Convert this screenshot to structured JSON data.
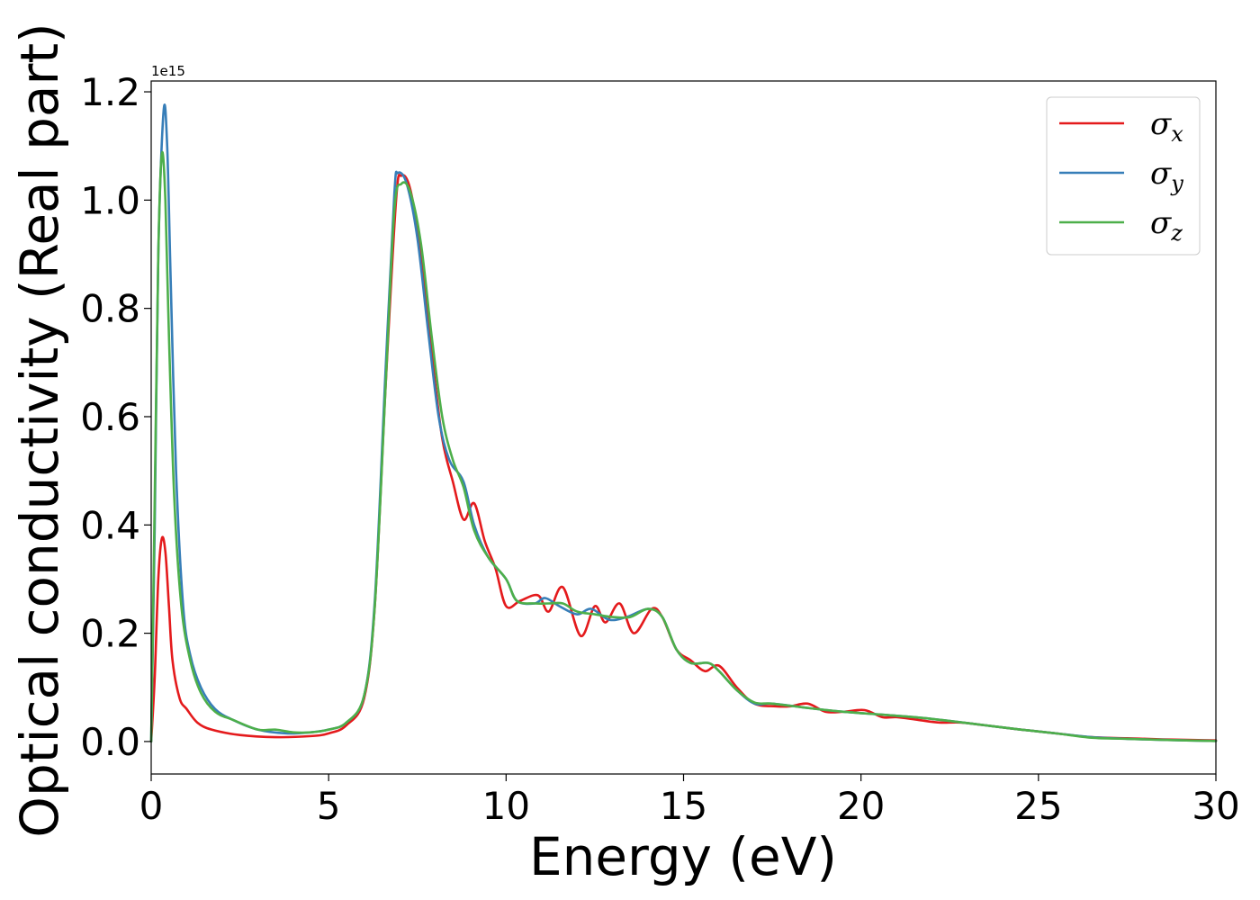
{
  "chart_data": {
    "type": "line",
    "title": "",
    "xlabel": "Energy (eV)",
    "ylabel": "Optical conductivity (Real part)",
    "y_offset_text": "1e15",
    "y_scale_factor": 1000000000000000.0,
    "xlim": [
      0,
      30
    ],
    "ylim": [
      -0.06,
      1.22
    ],
    "x_ticks": [
      0,
      5,
      10,
      15,
      20,
      25,
      30
    ],
    "x_tick_labels": [
      "0",
      "5",
      "10",
      "15",
      "20",
      "25",
      "30"
    ],
    "y_ticks": [
      0.0,
      0.2,
      0.4,
      0.6,
      0.8,
      1.0,
      1.2
    ],
    "y_tick_labels": [
      "0.0",
      "0.2",
      "0.4",
      "0.6",
      "0.8",
      "1.0",
      "1.2"
    ],
    "grid": false,
    "legend_position": "upper-right",
    "series": [
      {
        "name": "σx",
        "symbol": "σ",
        "subscript": "x",
        "color": "#e41a1c",
        "points": [
          [
            0,
            0
          ],
          [
            0.1,
            0.12
          ],
          [
            0.2,
            0.3
          ],
          [
            0.3,
            0.375
          ],
          [
            0.4,
            0.35
          ],
          [
            0.5,
            0.25
          ],
          [
            0.6,
            0.15
          ],
          [
            0.8,
            0.08
          ],
          [
            1.0,
            0.06
          ],
          [
            1.3,
            0.035
          ],
          [
            1.7,
            0.022
          ],
          [
            2.5,
            0.012
          ],
          [
            3.5,
            0.008
          ],
          [
            4.5,
            0.01
          ],
          [
            5.0,
            0.015
          ],
          [
            5.5,
            0.03
          ],
          [
            6.0,
            0.08
          ],
          [
            6.3,
            0.25
          ],
          [
            6.6,
            0.65
          ],
          [
            6.9,
            1.0
          ],
          [
            7.05,
            1.045
          ],
          [
            7.3,
            1.02
          ],
          [
            7.6,
            0.9
          ],
          [
            7.9,
            0.72
          ],
          [
            8.2,
            0.56
          ],
          [
            8.5,
            0.48
          ],
          [
            8.8,
            0.41
          ],
          [
            9.1,
            0.44
          ],
          [
            9.4,
            0.37
          ],
          [
            9.7,
            0.32
          ],
          [
            10.0,
            0.25
          ],
          [
            10.4,
            0.26
          ],
          [
            10.9,
            0.27
          ],
          [
            11.2,
            0.24
          ],
          [
            11.6,
            0.285
          ],
          [
            12.1,
            0.195
          ],
          [
            12.5,
            0.25
          ],
          [
            12.8,
            0.22
          ],
          [
            13.2,
            0.255
          ],
          [
            13.6,
            0.2
          ],
          [
            14.1,
            0.245
          ],
          [
            14.4,
            0.23
          ],
          [
            14.8,
            0.17
          ],
          [
            15.2,
            0.15
          ],
          [
            15.6,
            0.13
          ],
          [
            16.0,
            0.14
          ],
          [
            16.5,
            0.1
          ],
          [
            17.0,
            0.07
          ],
          [
            17.6,
            0.065
          ],
          [
            18.0,
            0.065
          ],
          [
            18.5,
            0.07
          ],
          [
            19.0,
            0.055
          ],
          [
            19.5,
            0.055
          ],
          [
            20.1,
            0.058
          ],
          [
            20.6,
            0.045
          ],
          [
            21.0,
            0.045
          ],
          [
            21.6,
            0.04
          ],
          [
            22.2,
            0.035
          ],
          [
            22.8,
            0.035
          ],
          [
            23.5,
            0.03
          ],
          [
            24.5,
            0.022
          ],
          [
            25.5,
            0.015
          ],
          [
            26.5,
            0.008
          ],
          [
            27.5,
            0.006
          ],
          [
            28.5,
            0.004
          ],
          [
            30,
            0.002
          ]
        ]
      },
      {
        "name": "σy",
        "symbol": "σ",
        "subscript": "y",
        "color": "#377eb8",
        "points": [
          [
            0,
            0
          ],
          [
            0.1,
            0.4
          ],
          [
            0.2,
            0.9
          ],
          [
            0.35,
            1.165
          ],
          [
            0.45,
            1.1
          ],
          [
            0.55,
            0.85
          ],
          [
            0.7,
            0.5
          ],
          [
            0.9,
            0.25
          ],
          [
            1.1,
            0.16
          ],
          [
            1.4,
            0.1
          ],
          [
            1.8,
            0.06
          ],
          [
            2.3,
            0.04
          ],
          [
            3.0,
            0.022
          ],
          [
            3.8,
            0.015
          ],
          [
            4.5,
            0.017
          ],
          [
            5.0,
            0.022
          ],
          [
            5.5,
            0.035
          ],
          [
            6.0,
            0.085
          ],
          [
            6.3,
            0.26
          ],
          [
            6.6,
            0.68
          ],
          [
            6.85,
            1.01
          ],
          [
            6.95,
            1.05
          ],
          [
            7.2,
            1.03
          ],
          [
            7.5,
            0.93
          ],
          [
            7.8,
            0.76
          ],
          [
            8.1,
            0.6
          ],
          [
            8.4,
            0.52
          ],
          [
            8.8,
            0.48
          ],
          [
            9.1,
            0.4
          ],
          [
            9.5,
            0.34
          ],
          [
            10.0,
            0.3
          ],
          [
            10.3,
            0.26
          ],
          [
            10.8,
            0.255
          ],
          [
            11.1,
            0.265
          ],
          [
            11.5,
            0.25
          ],
          [
            12.0,
            0.235
          ],
          [
            12.4,
            0.245
          ],
          [
            12.9,
            0.225
          ],
          [
            13.4,
            0.23
          ],
          [
            14.0,
            0.245
          ],
          [
            14.4,
            0.23
          ],
          [
            14.8,
            0.17
          ],
          [
            15.2,
            0.145
          ],
          [
            15.7,
            0.145
          ],
          [
            16.0,
            0.13
          ],
          [
            16.5,
            0.095
          ],
          [
            17.0,
            0.07
          ],
          [
            17.5,
            0.07
          ],
          [
            18.5,
            0.062
          ],
          [
            19.5,
            0.055
          ],
          [
            20.5,
            0.05
          ],
          [
            21.5,
            0.045
          ],
          [
            22.5,
            0.038
          ],
          [
            23.5,
            0.03
          ],
          [
            24.5,
            0.022
          ],
          [
            25.5,
            0.015
          ],
          [
            26.5,
            0.008
          ],
          [
            27.5,
            0.005
          ],
          [
            28.5,
            0.003
          ],
          [
            30,
            0.001
          ]
        ]
      },
      {
        "name": "σz",
        "symbol": "σ",
        "subscript": "z",
        "color": "#4daf4a",
        "points": [
          [
            0,
            0
          ],
          [
            0.1,
            0.45
          ],
          [
            0.2,
            0.9
          ],
          [
            0.3,
            1.085
          ],
          [
            0.4,
            1.0
          ],
          [
            0.5,
            0.75
          ],
          [
            0.65,
            0.45
          ],
          [
            0.85,
            0.25
          ],
          [
            1.1,
            0.15
          ],
          [
            1.4,
            0.09
          ],
          [
            1.8,
            0.055
          ],
          [
            2.3,
            0.04
          ],
          [
            3.0,
            0.022
          ],
          [
            3.5,
            0.022
          ],
          [
            4.0,
            0.017
          ],
          [
            4.5,
            0.017
          ],
          [
            5.0,
            0.022
          ],
          [
            5.5,
            0.035
          ],
          [
            6.0,
            0.085
          ],
          [
            6.3,
            0.25
          ],
          [
            6.6,
            0.65
          ],
          [
            6.85,
            0.98
          ],
          [
            7.05,
            1.03
          ],
          [
            7.3,
            1.015
          ],
          [
            7.6,
            0.92
          ],
          [
            7.9,
            0.75
          ],
          [
            8.2,
            0.6
          ],
          [
            8.5,
            0.52
          ],
          [
            8.8,
            0.47
          ],
          [
            9.1,
            0.39
          ],
          [
            9.5,
            0.34
          ],
          [
            10.0,
            0.3
          ],
          [
            10.3,
            0.26
          ],
          [
            10.8,
            0.255
          ],
          [
            11.2,
            0.255
          ],
          [
            11.6,
            0.255
          ],
          [
            12.0,
            0.24
          ],
          [
            12.5,
            0.235
          ],
          [
            13.0,
            0.23
          ],
          [
            13.5,
            0.23
          ],
          [
            14.0,
            0.245
          ],
          [
            14.4,
            0.23
          ],
          [
            14.8,
            0.17
          ],
          [
            15.2,
            0.145
          ],
          [
            15.7,
            0.145
          ],
          [
            16.0,
            0.13
          ],
          [
            16.5,
            0.095
          ],
          [
            17.0,
            0.072
          ],
          [
            17.5,
            0.07
          ],
          [
            18.5,
            0.062
          ],
          [
            19.5,
            0.055
          ],
          [
            20.5,
            0.05
          ],
          [
            21.5,
            0.045
          ],
          [
            22.5,
            0.038
          ],
          [
            23.5,
            0.03
          ],
          [
            24.5,
            0.022
          ],
          [
            25.5,
            0.015
          ],
          [
            26.5,
            0.007
          ],
          [
            27.5,
            0.005
          ],
          [
            28.5,
            0.003
          ],
          [
            30,
            0.001
          ]
        ]
      }
    ]
  }
}
